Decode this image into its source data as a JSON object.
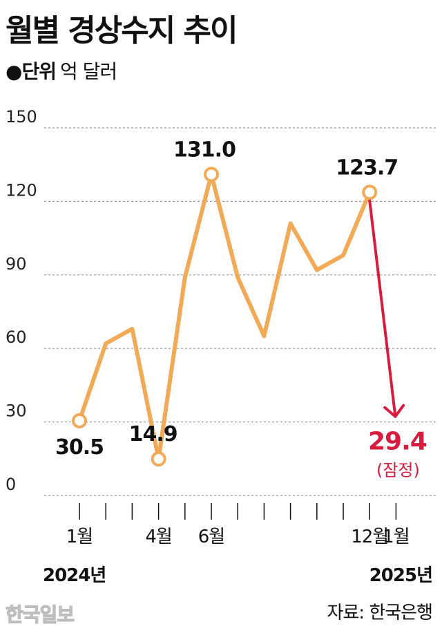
{
  "header": {
    "title": "월별 경상수지 추이",
    "unit_key": "단위",
    "unit_value": "억 달러"
  },
  "colors": {
    "line": "#f2aa57",
    "highlight": "#d81c3f",
    "grid": "#999999"
  },
  "chart_data": {
    "type": "line",
    "ylim": [
      0,
      150
    ],
    "yticks": [
      "150",
      "120",
      "90",
      "60",
      "30",
      "0"
    ],
    "grid": true,
    "x": [
      "2024-01",
      "2024-02",
      "2024-03",
      "2024-04",
      "2024-05",
      "2024-06",
      "2024-07",
      "2024-08",
      "2024-09",
      "2024-10",
      "2024-11",
      "2024-12",
      "2025-01"
    ],
    "xtick_labels": [
      "1월",
      "",
      "",
      "4월",
      "",
      "6월",
      "",
      "",
      "",
      "",
      "",
      "12월",
      "1월"
    ],
    "series": [
      {
        "values": [
          30.5,
          62,
          68,
          14.9,
          89,
          131.0,
          89,
          65,
          111,
          92,
          98,
          123.7,
          null
        ]
      },
      {
        "values": [
          null,
          null,
          null,
          null,
          null,
          null,
          null,
          null,
          null,
          null,
          null,
          123.7,
          29.4
        ]
      }
    ],
    "data_labels": [
      {
        "index": 0,
        "text": "30.5"
      },
      {
        "index": 3,
        "text": "14.9"
      },
      {
        "index": 5,
        "text": "131.0"
      },
      {
        "index": 11,
        "text": "123.7"
      },
      {
        "index": 12,
        "text": "29.4"
      }
    ],
    "annotation": "(잠정)",
    "year_labels": [
      "2024년",
      "2025년"
    ]
  },
  "source": "자료: 한국은행",
  "logo": "한국일보"
}
